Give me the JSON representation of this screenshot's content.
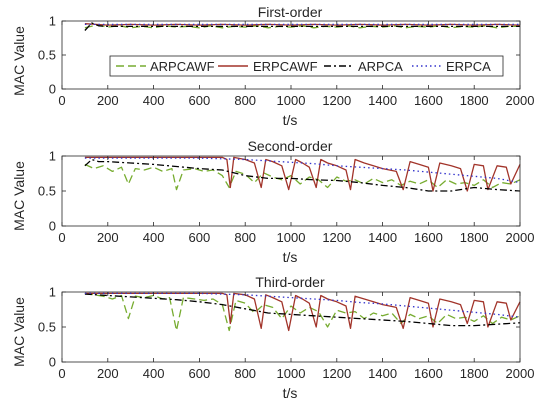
{
  "chart_data": [
    {
      "type": "line",
      "title": "First-order",
      "xlabel": "t/s",
      "ylabel": "MAC Value",
      "xlim": [
        0,
        2000
      ],
      "ylim": [
        0,
        1
      ],
      "xticks": [
        0,
        200,
        400,
        600,
        800,
        1000,
        1200,
        1400,
        1600,
        1800,
        2000
      ],
      "yticks": [
        0,
        0.5,
        1
      ],
      "ytick_labels": [
        "0",
        "0.5",
        "1"
      ],
      "grid": false,
      "legend": {
        "placement": "center",
        "orientation": "horizontal"
      },
      "series": [
        {
          "name": "ARPCAWF",
          "color": "#77AC30",
          "dash": "dashed",
          "x": [
            100,
            150,
            200,
            250,
            300,
            350,
            400,
            450,
            500,
            550,
            600,
            650,
            700,
            750,
            800,
            850,
            900,
            950,
            1000,
            1050,
            1100,
            1150,
            1200,
            1250,
            1300,
            1350,
            1400,
            1450,
            1500,
            1550,
            1600,
            1650,
            1700,
            1750,
            1800,
            1850,
            1900,
            1950,
            2000
          ],
          "y": [
            0.9,
            0.94,
            0.91,
            0.93,
            0.9,
            0.92,
            0.9,
            0.93,
            0.91,
            0.92,
            0.9,
            0.93,
            0.9,
            0.92,
            0.91,
            0.93,
            0.9,
            0.92,
            0.91,
            0.93,
            0.9,
            0.92,
            0.91,
            0.93,
            0.9,
            0.92,
            0.91,
            0.93,
            0.9,
            0.92,
            0.91,
            0.93,
            0.9,
            0.92,
            0.91,
            0.93,
            0.9,
            0.92,
            0.92
          ]
        },
        {
          "name": "ERPCAWF",
          "color": "#A2342A",
          "dash": "solid",
          "x": [
            100,
            150,
            200,
            300,
            400,
            500,
            600,
            700,
            800,
            900,
            1000,
            1100,
            1200,
            1300,
            1400,
            1500,
            1600,
            1700,
            1800,
            1900,
            2000
          ],
          "y": [
            0.96,
            0.95,
            0.94,
            0.95,
            0.94,
            0.95,
            0.94,
            0.95,
            0.94,
            0.95,
            0.94,
            0.95,
            0.94,
            0.95,
            0.94,
            0.95,
            0.94,
            0.95,
            0.94,
            0.95,
            0.94
          ]
        },
        {
          "name": "ARPCA",
          "color": "#000000",
          "dash": "dashdot",
          "x": [
            100,
            130,
            160,
            200,
            300,
            400,
            500,
            600,
            700,
            800,
            900,
            1000,
            1100,
            1200,
            1300,
            1400,
            1500,
            1600,
            1700,
            1800,
            1900,
            2000
          ],
          "y": [
            0.86,
            0.97,
            0.93,
            0.92,
            0.92,
            0.92,
            0.92,
            0.92,
            0.92,
            0.92,
            0.92,
            0.92,
            0.92,
            0.92,
            0.92,
            0.92,
            0.92,
            0.92,
            0.92,
            0.92,
            0.92,
            0.92
          ]
        },
        {
          "name": "ERPCA",
          "color": "#3333CC",
          "dash": "dotted",
          "x": [
            100,
            200,
            300,
            400,
            500,
            600,
            700,
            800,
            900,
            1000,
            1100,
            1200,
            1300,
            1400,
            1500,
            1600,
            1700,
            1800,
            1900,
            2000
          ],
          "y": [
            0.95,
            0.95,
            0.95,
            0.95,
            0.95,
            0.95,
            0.95,
            0.95,
            0.95,
            0.95,
            0.95,
            0.95,
            0.95,
            0.95,
            0.95,
            0.95,
            0.95,
            0.95,
            0.95,
            0.95
          ]
        }
      ]
    },
    {
      "type": "line",
      "title": "Second-order",
      "xlabel": "t/s",
      "ylabel": "MAC Value",
      "xlim": [
        0,
        2000
      ],
      "ylim": [
        0,
        1
      ],
      "xticks": [
        0,
        200,
        400,
        600,
        800,
        1000,
        1200,
        1400,
        1600,
        1800,
        2000
      ],
      "yticks": [
        0,
        0.5,
        1
      ],
      "ytick_labels": [
        "0",
        "0.5",
        "1"
      ],
      "grid": false,
      "series": [
        {
          "name": "ARPCAWF",
          "color": "#77AC30",
          "dash": "dashed",
          "x": [
            100,
            140,
            180,
            220,
            260,
            290,
            320,
            360,
            400,
            440,
            480,
            500,
            530,
            580,
            620,
            660,
            700,
            730,
            760,
            800,
            840,
            880,
            920,
            960,
            1000,
            1040,
            1080,
            1120,
            1160,
            1200,
            1240,
            1280,
            1320,
            1360,
            1400,
            1440,
            1480,
            1520,
            1560,
            1600,
            1640,
            1680,
            1720,
            1760,
            1800,
            1840,
            1880,
            1920,
            1960,
            2000
          ],
          "y": [
            0.88,
            0.82,
            0.86,
            0.78,
            0.84,
            0.6,
            0.82,
            0.8,
            0.84,
            0.78,
            0.82,
            0.52,
            0.8,
            0.82,
            0.78,
            0.8,
            0.72,
            0.55,
            0.78,
            0.74,
            0.62,
            0.76,
            0.7,
            0.66,
            0.72,
            0.6,
            0.7,
            0.66,
            0.55,
            0.7,
            0.64,
            0.66,
            0.6,
            0.68,
            0.62,
            0.66,
            0.58,
            0.64,
            0.6,
            0.66,
            0.55,
            0.66,
            0.6,
            0.62,
            0.58,
            0.66,
            0.55,
            0.62,
            0.6,
            0.66
          ]
        },
        {
          "name": "ERPCAWF",
          "color": "#A2342A",
          "dash": "solid",
          "x": [
            100,
            200,
            300,
            400,
            500,
            600,
            700,
            720,
            735,
            750,
            800,
            840,
            870,
            890,
            920,
            960,
            990,
            1020,
            1050,
            1080,
            1110,
            1130,
            1160,
            1200,
            1240,
            1260,
            1280,
            1320,
            1360,
            1400,
            1460,
            1490,
            1520,
            1560,
            1600,
            1620,
            1650,
            1700,
            1740,
            1770,
            1800,
            1840,
            1860,
            1900,
            1940,
            1960,
            2000
          ],
          "y": [
            0.98,
            0.98,
            0.98,
            0.98,
            0.98,
            0.98,
            0.98,
            0.95,
            0.55,
            0.98,
            0.95,
            0.9,
            0.55,
            0.95,
            0.92,
            0.86,
            0.52,
            0.95,
            0.9,
            0.84,
            0.55,
            0.95,
            0.9,
            0.86,
            0.8,
            0.52,
            0.95,
            0.9,
            0.86,
            0.82,
            0.78,
            0.52,
            0.92,
            0.88,
            0.84,
            0.5,
            0.9,
            0.86,
            0.82,
            0.5,
            0.88,
            0.86,
            0.52,
            0.86,
            0.84,
            0.6,
            0.88
          ]
        },
        {
          "name": "ARPCA",
          "color": "#000000",
          "dash": "dashdot",
          "x": [
            100,
            130,
            160,
            200,
            300,
            400,
            500,
            600,
            700,
            800,
            900,
            1000,
            1100,
            1200,
            1300,
            1400,
            1500,
            1600,
            1700,
            1800,
            1900,
            2000
          ],
          "y": [
            0.86,
            0.95,
            0.92,
            0.92,
            0.9,
            0.88,
            0.85,
            0.82,
            0.8,
            0.72,
            0.68,
            0.68,
            0.66,
            0.65,
            0.62,
            0.58,
            0.55,
            0.5,
            0.5,
            0.55,
            0.52,
            0.5
          ]
        },
        {
          "name": "ERPCA",
          "color": "#3333CC",
          "dash": "dotted",
          "x": [
            100,
            200,
            300,
            400,
            500,
            600,
            700,
            800,
            900,
            1000,
            1100,
            1200,
            1300,
            1400,
            1500,
            1600,
            1700,
            1800,
            1900,
            2000
          ],
          "y": [
            0.97,
            0.97,
            0.97,
            0.97,
            0.97,
            0.97,
            0.96,
            0.95,
            0.93,
            0.91,
            0.89,
            0.86,
            0.84,
            0.82,
            0.8,
            0.77,
            0.74,
            0.71,
            0.68,
            0.62
          ]
        }
      ]
    },
    {
      "type": "line",
      "title": "Third-order",
      "xlabel": "t/s",
      "ylabel": "MAC Value",
      "xlim": [
        0,
        2000
      ],
      "ylim": [
        0,
        1
      ],
      "xticks": [
        0,
        200,
        400,
        600,
        800,
        1000,
        1200,
        1400,
        1600,
        1800,
        2000
      ],
      "yticks": [
        0,
        0.5,
        1
      ],
      "ytick_labels": [
        "0",
        "0.5",
        "1"
      ],
      "grid": false,
      "series": [
        {
          "name": "ARPCAWF",
          "color": "#77AC30",
          "dash": "dashed",
          "x": [
            100,
            140,
            180,
            220,
            260,
            290,
            320,
            360,
            400,
            440,
            470,
            500,
            530,
            580,
            620,
            660,
            700,
            730,
            760,
            800,
            840,
            880,
            920,
            960,
            1000,
            1040,
            1080,
            1120,
            1160,
            1200,
            1240,
            1280,
            1320,
            1360,
            1400,
            1440,
            1480,
            1520,
            1560,
            1600,
            1640,
            1680,
            1720,
            1760,
            1800,
            1840,
            1880,
            1920,
            1960,
            2000
          ],
          "y": [
            0.98,
            0.96,
            0.94,
            0.9,
            0.95,
            0.62,
            0.94,
            0.92,
            0.95,
            0.9,
            0.92,
            0.45,
            0.92,
            0.9,
            0.88,
            0.9,
            0.82,
            0.45,
            0.88,
            0.84,
            0.7,
            0.82,
            0.78,
            0.62,
            0.8,
            0.7,
            0.78,
            0.72,
            0.5,
            0.74,
            0.7,
            0.72,
            0.62,
            0.7,
            0.66,
            0.7,
            0.55,
            0.68,
            0.62,
            0.66,
            0.55,
            0.68,
            0.62,
            0.64,
            0.58,
            0.66,
            0.55,
            0.64,
            0.6,
            0.66
          ]
        },
        {
          "name": "ERPCAWF",
          "color": "#A2342A",
          "dash": "solid",
          "x": [
            100,
            200,
            300,
            400,
            500,
            600,
            700,
            720,
            735,
            750,
            800,
            840,
            870,
            890,
            920,
            960,
            990,
            1020,
            1050,
            1080,
            1110,
            1130,
            1160,
            1200,
            1240,
            1260,
            1280,
            1320,
            1360,
            1400,
            1460,
            1490,
            1520,
            1560,
            1600,
            1620,
            1650,
            1700,
            1740,
            1770,
            1800,
            1840,
            1860,
            1900,
            1940,
            1960,
            2000
          ],
          "y": [
            0.98,
            0.98,
            0.98,
            0.98,
            0.98,
            0.98,
            0.98,
            0.96,
            0.55,
            0.98,
            0.96,
            0.9,
            0.48,
            0.96,
            0.92,
            0.86,
            0.45,
            0.95,
            0.9,
            0.84,
            0.5,
            0.95,
            0.9,
            0.86,
            0.8,
            0.48,
            0.94,
            0.9,
            0.86,
            0.82,
            0.78,
            0.48,
            0.92,
            0.88,
            0.84,
            0.5,
            0.9,
            0.86,
            0.82,
            0.55,
            0.88,
            0.86,
            0.5,
            0.86,
            0.84,
            0.6,
            0.86
          ]
        },
        {
          "name": "ARPCA",
          "color": "#000000",
          "dash": "dashdot",
          "x": [
            100,
            200,
            300,
            400,
            500,
            600,
            700,
            800,
            900,
            1000,
            1100,
            1200,
            1300,
            1400,
            1500,
            1600,
            1700,
            1800,
            1900,
            2000
          ],
          "y": [
            0.97,
            0.95,
            0.93,
            0.91,
            0.89,
            0.86,
            0.82,
            0.76,
            0.7,
            0.68,
            0.66,
            0.64,
            0.62,
            0.6,
            0.58,
            0.55,
            0.52,
            0.52,
            0.54,
            0.56
          ]
        },
        {
          "name": "ERPCA",
          "color": "#3333CC",
          "dash": "dotted",
          "x": [
            100,
            200,
            300,
            400,
            500,
            600,
            700,
            800,
            900,
            1000,
            1100,
            1200,
            1300,
            1400,
            1500,
            1600,
            1700,
            1800,
            1900,
            2000
          ],
          "y": [
            0.98,
            0.98,
            0.98,
            0.98,
            0.98,
            0.98,
            0.97,
            0.96,
            0.94,
            0.92,
            0.9,
            0.88,
            0.85,
            0.83,
            0.8,
            0.77,
            0.74,
            0.71,
            0.68,
            0.64
          ]
        }
      ]
    }
  ]
}
